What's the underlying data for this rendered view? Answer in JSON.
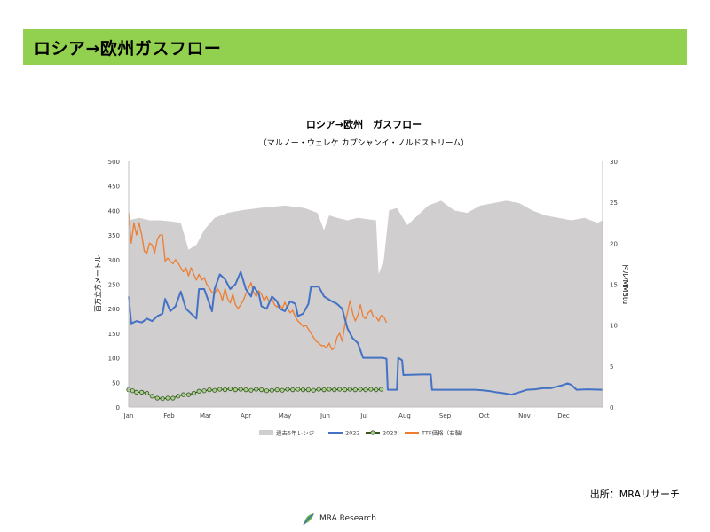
{
  "page": {
    "heading": "ロシア→欧州ガスフロー",
    "source": "出所：MRAリサーチ",
    "logo_text": "MRA Research"
  },
  "chart_data": {
    "type": "line",
    "title": "ロシア→欧州　ガスフロー",
    "subtitle": "（マルノー・ウェレケ カプシャンイ・ノルドストリーム）",
    "ylabel": "百万立方メートル",
    "y2label": "ドル/MMBtu",
    "ylim": [
      0,
      500
    ],
    "y2lim": [
      0,
      30
    ],
    "yticks": [
      "0",
      "50",
      "100",
      "150",
      "200",
      "250",
      "300",
      "350",
      "400",
      "450",
      "500"
    ],
    "y2ticks": [
      "0",
      "5",
      "10",
      "15",
      "20",
      "25",
      "30"
    ],
    "months": [
      "Jan",
      "Feb",
      "Mar",
      "Apr",
      "May",
      "Jun",
      "Jul",
      "Aug",
      "Sep",
      "Oct",
      "Nov",
      "Dec"
    ],
    "legend": [
      "過去5年レンジ",
      "2022",
      "2023",
      "TTF価格（右軸）"
    ],
    "colors": {
      "range": "#d0cece",
      "s2022": "#4472c4",
      "s2023": "#375623",
      "s2023_marker": "#a9d18e",
      "ttf": "#ed7d31"
    },
    "range_max": [
      [
        0,
        380
      ],
      [
        8,
        385
      ],
      [
        16,
        380
      ],
      [
        24,
        380
      ],
      [
        32,
        378
      ],
      [
        40,
        375
      ],
      [
        46,
        320
      ],
      [
        52,
        330
      ],
      [
        58,
        360
      ],
      [
        66,
        385
      ],
      [
        76,
        395
      ],
      [
        86,
        400
      ],
      [
        100,
        405
      ],
      [
        120,
        410
      ],
      [
        135,
        405
      ],
      [
        145,
        395
      ],
      [
        150,
        360
      ],
      [
        154,
        390
      ],
      [
        160,
        385
      ],
      [
        168,
        380
      ],
      [
        176,
        385
      ],
      [
        184,
        382
      ],
      [
        190,
        380
      ],
      [
        192,
        270
      ],
      [
        196,
        300
      ],
      [
        200,
        400
      ],
      [
        206,
        405
      ],
      [
        214,
        370
      ],
      [
        222,
        390
      ],
      [
        230,
        410
      ],
      [
        240,
        420
      ],
      [
        250,
        400
      ],
      [
        260,
        395
      ],
      [
        270,
        410
      ],
      [
        280,
        415
      ],
      [
        290,
        420
      ],
      [
        300,
        415
      ],
      [
        310,
        400
      ],
      [
        320,
        390
      ],
      [
        330,
        385
      ],
      [
        340,
        380
      ],
      [
        350,
        385
      ],
      [
        360,
        375
      ],
      [
        364,
        380
      ]
    ],
    "range_min": [
      [
        0,
        0
      ],
      [
        364,
        0
      ]
    ],
    "s2022": [
      [
        0,
        225
      ],
      [
        2,
        170
      ],
      [
        6,
        175
      ],
      [
        10,
        172
      ],
      [
        14,
        180
      ],
      [
        18,
        175
      ],
      [
        22,
        185
      ],
      [
        26,
        190
      ],
      [
        28,
        220
      ],
      [
        32,
        195
      ],
      [
        36,
        205
      ],
      [
        40,
        235
      ],
      [
        44,
        200
      ],
      [
        48,
        190
      ],
      [
        52,
        180
      ],
      [
        54,
        240
      ],
      [
        58,
        240
      ],
      [
        62,
        210
      ],
      [
        64,
        195
      ],
      [
        66,
        240
      ],
      [
        70,
        270
      ],
      [
        74,
        260
      ],
      [
        78,
        240
      ],
      [
        82,
        250
      ],
      [
        86,
        275
      ],
      [
        90,
        240
      ],
      [
        94,
        225
      ],
      [
        96,
        245
      ],
      [
        100,
        230
      ],
      [
        102,
        205
      ],
      [
        106,
        200
      ],
      [
        110,
        225
      ],
      [
        114,
        215
      ],
      [
        116,
        200
      ],
      [
        120,
        195
      ],
      [
        124,
        215
      ],
      [
        128,
        210
      ],
      [
        130,
        185
      ],
      [
        134,
        190
      ],
      [
        138,
        210
      ],
      [
        140,
        245
      ],
      [
        146,
        245
      ],
      [
        150,
        225
      ],
      [
        156,
        215
      ],
      [
        160,
        210
      ],
      [
        164,
        200
      ],
      [
        168,
        160
      ],
      [
        172,
        140
      ],
      [
        176,
        130
      ],
      [
        180,
        100
      ],
      [
        195,
        100
      ],
      [
        198,
        98
      ],
      [
        199,
        35
      ],
      [
        206,
        35
      ],
      [
        207,
        100
      ],
      [
        210,
        95
      ],
      [
        211,
        65
      ],
      [
        225,
        66
      ],
      [
        232,
        66
      ],
      [
        233,
        35
      ],
      [
        250,
        35
      ],
      [
        266,
        35
      ],
      [
        272,
        34
      ],
      [
        278,
        32
      ],
      [
        282,
        30
      ],
      [
        288,
        28
      ],
      [
        294,
        25
      ],
      [
        300,
        30
      ],
      [
        306,
        35
      ],
      [
        312,
        36
      ],
      [
        318,
        38
      ],
      [
        324,
        38
      ],
      [
        330,
        42
      ],
      [
        334,
        45
      ],
      [
        337,
        48
      ],
      [
        340,
        45
      ],
      [
        344,
        35
      ],
      [
        352,
        36
      ],
      [
        364,
        35
      ]
    ],
    "s2023": [
      [
        0,
        35
      ],
      [
        3,
        33
      ],
      [
        6,
        30
      ],
      [
        10,
        30
      ],
      [
        14,
        28
      ],
      [
        18,
        22
      ],
      [
        22,
        18
      ],
      [
        26,
        17
      ],
      [
        30,
        18
      ],
      [
        34,
        18
      ],
      [
        38,
        22
      ],
      [
        42,
        25
      ],
      [
        46,
        25
      ],
      [
        50,
        28
      ],
      [
        54,
        32
      ],
      [
        58,
        33
      ],
      [
        62,
        35
      ],
      [
        66,
        34
      ],
      [
        70,
        36
      ],
      [
        74,
        35
      ],
      [
        78,
        37
      ],
      [
        82,
        35
      ],
      [
        86,
        36
      ],
      [
        90,
        35
      ],
      [
        94,
        34
      ],
      [
        98,
        36
      ],
      [
        102,
        35
      ],
      [
        106,
        33
      ],
      [
        110,
        34
      ],
      [
        114,
        35
      ],
      [
        118,
        34
      ],
      [
        122,
        36
      ],
      [
        126,
        35
      ],
      [
        130,
        36
      ],
      [
        134,
        35
      ],
      [
        138,
        35
      ],
      [
        142,
        34
      ],
      [
        146,
        36
      ],
      [
        150,
        35
      ],
      [
        154,
        36
      ],
      [
        158,
        35
      ],
      [
        162,
        36
      ],
      [
        166,
        35
      ],
      [
        170,
        36
      ],
      [
        174,
        35
      ],
      [
        178,
        36
      ],
      [
        182,
        35
      ],
      [
        186,
        36
      ],
      [
        190,
        35
      ],
      [
        194,
        36
      ]
    ],
    "ttf": [
      [
        0,
        23.7
      ],
      [
        2,
        20
      ],
      [
        4,
        22.5
      ],
      [
        6,
        21
      ],
      [
        8,
        22.5
      ],
      [
        10,
        21
      ],
      [
        12,
        19
      ],
      [
        14,
        18.8
      ],
      [
        16,
        20
      ],
      [
        18,
        19.8
      ],
      [
        20,
        18.8
      ],
      [
        22,
        20.5
      ],
      [
        24,
        21
      ],
      [
        26,
        21
      ],
      [
        28,
        17.8
      ],
      [
        30,
        18.2
      ],
      [
        32,
        17.8
      ],
      [
        34,
        17.5
      ],
      [
        36,
        18.0
      ],
      [
        38,
        17.6
      ],
      [
        40,
        17.0
      ],
      [
        42,
        16.5
      ],
      [
        44,
        17.0
      ],
      [
        46,
        16.0
      ],
      [
        48,
        17.0
      ],
      [
        50,
        16.2
      ],
      [
        52,
        15.5
      ],
      [
        54,
        16.2
      ],
      [
        56,
        15.5
      ],
      [
        58,
        15.8
      ],
      [
        60,
        15.0
      ],
      [
        62,
        14.5
      ],
      [
        64,
        14.0
      ],
      [
        66,
        13.8
      ],
      [
        68,
        14.5
      ],
      [
        70,
        14.0
      ],
      [
        72,
        13.0
      ],
      [
        74,
        14.5
      ],
      [
        76,
        13.2
      ],
      [
        78,
        12.7
      ],
      [
        80,
        13.8
      ],
      [
        82,
        12.5
      ],
      [
        84,
        12.0
      ],
      [
        86,
        12.5
      ],
      [
        88,
        13.0
      ],
      [
        90,
        13.8
      ],
      [
        92,
        14.5
      ],
      [
        94,
        15.2
      ],
      [
        96,
        14.0
      ],
      [
        98,
        13.5
      ],
      [
        100,
        14.2
      ],
      [
        102,
        13.8
      ],
      [
        104,
        13.0
      ],
      [
        106,
        13.5
      ],
      [
        108,
        12.8
      ],
      [
        110,
        13.2
      ],
      [
        112,
        12.5
      ],
      [
        114,
        12.2
      ],
      [
        116,
        12.5
      ],
      [
        118,
        12.0
      ],
      [
        120,
        12.8
      ],
      [
        122,
        12.0
      ],
      [
        124,
        11.5
      ],
      [
        126,
        11.8
      ],
      [
        128,
        11.0
      ],
      [
        130,
        10.5
      ],
      [
        132,
        10.2
      ],
      [
        134,
        9.8
      ],
      [
        136,
        10.0
      ],
      [
        138,
        9.5
      ],
      [
        140,
        9.0
      ],
      [
        142,
        8.5
      ],
      [
        144,
        8.0
      ],
      [
        146,
        7.8
      ],
      [
        148,
        7.5
      ],
      [
        150,
        7.5
      ],
      [
        152,
        7.2
      ],
      [
        154,
        7.8
      ],
      [
        156,
        7.0
      ],
      [
        158,
        7.2
      ],
      [
        160,
        8.5
      ],
      [
        162,
        9.0
      ],
      [
        164,
        8.0
      ],
      [
        166,
        10.0
      ],
      [
        168,
        11.5
      ],
      [
        170,
        13.0
      ],
      [
        172,
        11.5
      ],
      [
        174,
        10.5
      ],
      [
        176,
        11.2
      ],
      [
        178,
        12.5
      ],
      [
        180,
        11.0
      ],
      [
        182,
        10.8
      ],
      [
        184,
        11.5
      ],
      [
        186,
        11.8
      ],
      [
        188,
        11.0
      ],
      [
        190,
        11.0
      ],
      [
        192,
        10.5
      ],
      [
        194,
        11.2
      ],
      [
        196,
        11.0
      ],
      [
        198,
        10.3
      ]
    ]
  }
}
